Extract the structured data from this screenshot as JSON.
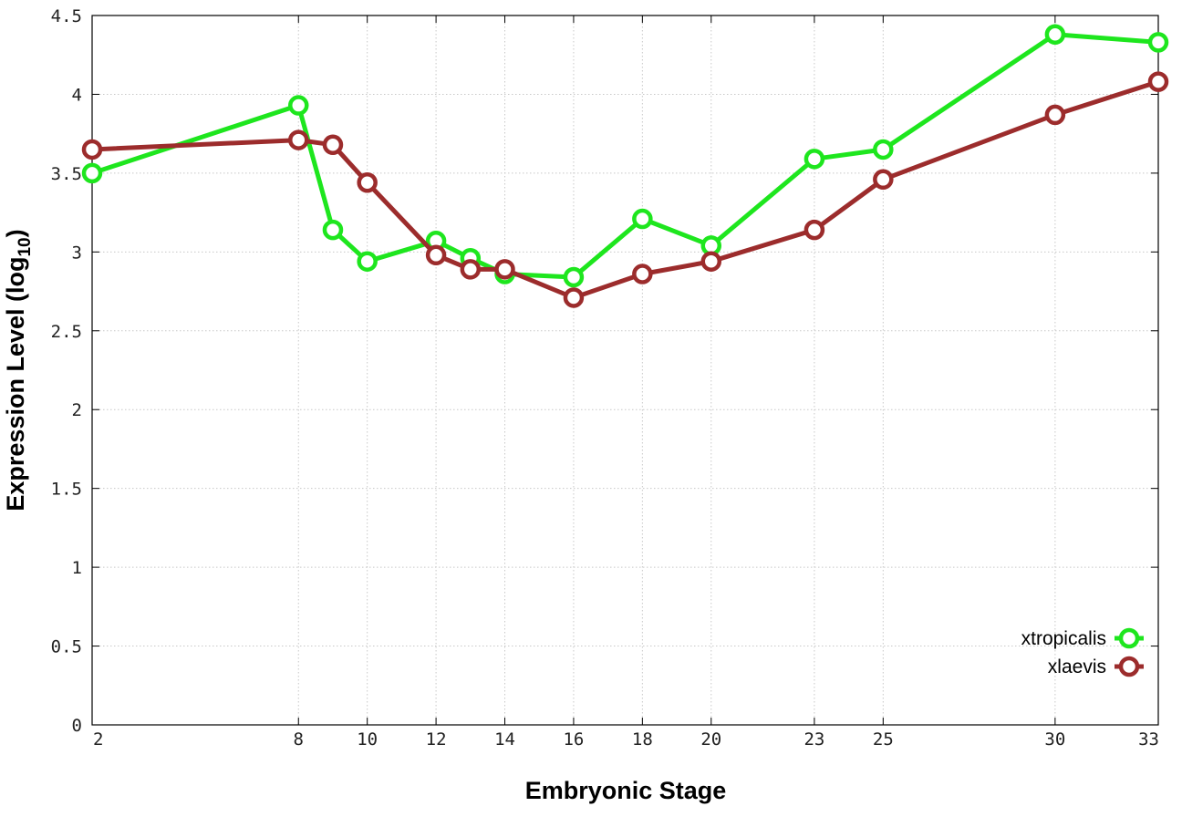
{
  "chart_data": {
    "type": "line",
    "xlabel": "Embryonic Stage",
    "ylabel": {
      "main": "Expression Level (log",
      "sub": "10",
      "close": ")"
    },
    "x_ticks": [
      2,
      8,
      10,
      12,
      14,
      16,
      18,
      20,
      23,
      25,
      30,
      33
    ],
    "y_ticks": [
      "0",
      "0.5",
      "1",
      "1.5",
      "2",
      "2.5",
      "3",
      "3.5",
      "4",
      "4.5"
    ],
    "xlim": [
      2,
      33
    ],
    "ylim": [
      0,
      4.5
    ],
    "grid": true,
    "legend_position": "bottom-right",
    "series": [
      {
        "name": "xtropicalis",
        "color": "#1ee61e",
        "x": [
          2,
          8,
          9,
          10,
          12,
          13,
          14,
          16,
          18,
          20,
          23,
          25,
          30,
          33
        ],
        "y": [
          3.5,
          3.93,
          3.14,
          2.94,
          3.07,
          2.96,
          2.86,
          2.84,
          3.21,
          3.04,
          3.59,
          3.65,
          4.38,
          4.33
        ]
      },
      {
        "name": "xlaevis",
        "color": "#9c2c2c",
        "x": [
          2,
          8,
          9,
          10,
          12,
          13,
          14,
          16,
          18,
          20,
          23,
          25,
          30,
          33
        ],
        "y": [
          3.65,
          3.71,
          3.68,
          3.44,
          2.98,
          2.89,
          2.89,
          2.71,
          2.86,
          2.94,
          3.14,
          3.46,
          3.87,
          4.08
        ]
      }
    ]
  }
}
